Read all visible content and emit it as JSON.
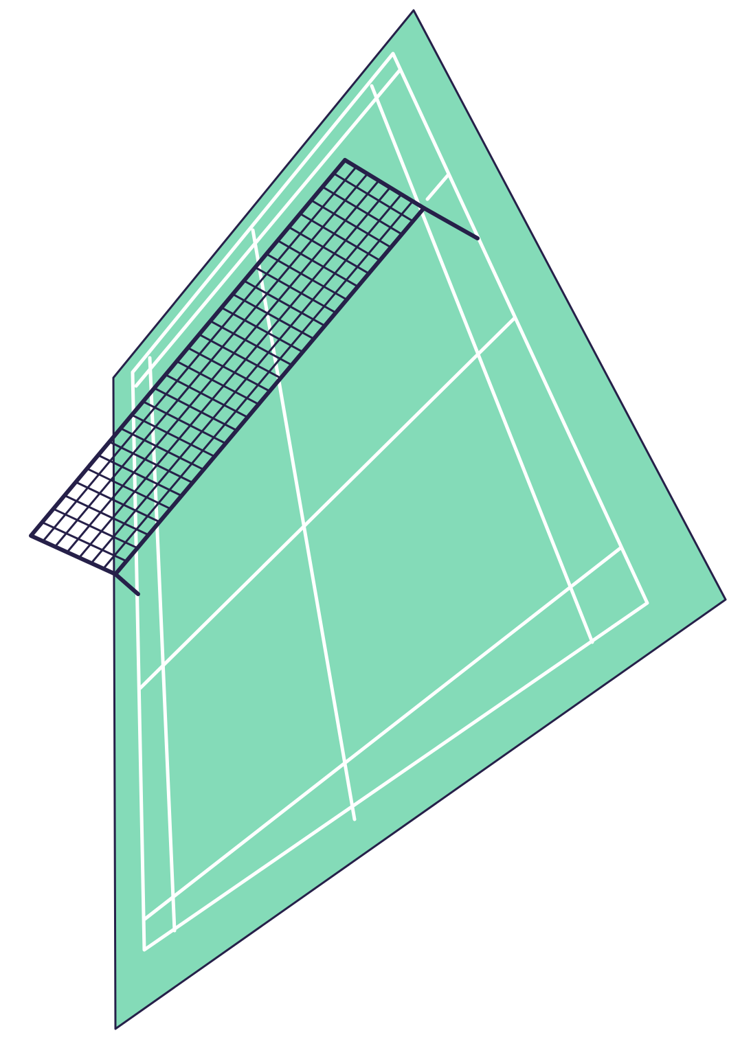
{
  "illustration": {
    "subject": "badminton-court-with-net",
    "colors": {
      "court_fill": "#84DBB8",
      "court_outline": "#262049",
      "line_paint": "#FFFFFF",
      "net_mesh": "#262049",
      "background": "#FFFFFF"
    },
    "icons": [
      "badminton-court-icon",
      "net-icon"
    ]
  }
}
